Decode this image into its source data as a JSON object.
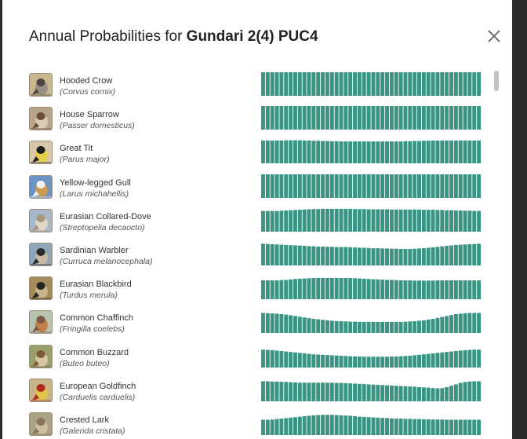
{
  "dialog": {
    "title_prefix": "Annual Probabilities for ",
    "location": "Gundari 2(4) PUC4",
    "close_icon": "close-icon"
  },
  "colors": {
    "bar": "#3a9484"
  },
  "species": [
    {
      "common": "Hooded Crow",
      "scientific": "(Corvus cornix)",
      "icon": "bird-photo-icon",
      "thumb": [
        "#c8b68f",
        "#4a4540",
        "#9a9186"
      ],
      "weekly_probability": [
        1,
        1,
        1,
        1,
        1,
        1,
        1,
        1,
        1,
        1,
        1,
        1,
        1,
        1,
        1,
        1,
        1,
        1,
        1,
        1,
        1,
        1,
        1,
        1,
        1,
        1,
        1,
        1,
        1,
        1,
        1,
        1,
        1,
        1,
        1,
        1,
        1,
        1,
        1,
        1,
        1,
        1,
        1,
        1,
        1,
        1,
        1,
        1
      ]
    },
    {
      "common": "House Sparrow",
      "scientific": "(Passer domesticus)",
      "icon": "bird-photo-icon",
      "thumb": [
        "#b7a48a",
        "#6b4e35",
        "#d7cbb7"
      ],
      "weekly_probability": [
        1,
        1,
        1,
        1,
        1,
        1,
        1,
        1,
        1,
        1,
        1,
        1,
        1,
        1,
        1,
        1,
        1,
        1,
        1,
        1,
        1,
        1,
        1,
        1,
        1,
        1,
        1,
        1,
        1,
        1,
        1,
        1,
        1,
        1,
        1,
        1,
        1,
        1,
        1,
        1,
        1,
        1,
        1,
        1,
        1,
        1,
        1,
        1
      ]
    },
    {
      "common": "Great Tit",
      "scientific": "(Parus major)",
      "icon": "bird-photo-icon",
      "thumb": [
        "#d9c7a9",
        "#1e1e1e",
        "#e3cf4a"
      ],
      "weekly_probability": [
        0.97,
        0.97,
        0.97,
        0.97,
        0.97,
        0.98,
        0.98,
        0.98,
        0.98,
        0.97,
        0.97,
        0.96,
        0.96,
        0.95,
        0.95,
        0.94,
        0.94,
        0.93,
        0.93,
        0.93,
        0.93,
        0.93,
        0.93,
        0.93,
        0.93,
        0.93,
        0.93,
        0.93,
        0.93,
        0.93,
        0.93,
        0.94,
        0.94,
        0.95,
        0.95,
        0.96,
        0.96,
        0.97,
        0.97,
        0.97,
        0.97,
        0.97,
        0.97,
        0.97,
        0.97,
        0.97,
        0.97,
        0.97
      ]
    },
    {
      "common": "Yellow-legged Gull",
      "scientific": "(Larus michahellis)",
      "icon": "bird-photo-icon",
      "thumb": [
        "#6b94c4",
        "#f0f0f0",
        "#c79a4f"
      ],
      "weekly_probability": [
        1,
        1,
        1,
        1,
        1,
        1,
        1,
        1,
        1,
        1,
        1,
        1,
        1,
        1,
        1,
        1,
        1,
        1,
        1,
        1,
        1,
        1,
        1,
        1,
        1,
        1,
        1,
        1,
        1,
        1,
        1,
        1,
        1,
        1,
        1,
        1,
        1,
        1,
        1,
        1,
        1,
        1,
        1,
        1,
        1,
        1,
        1,
        1
      ]
    },
    {
      "common": "Eurasian Collared-Dove",
      "scientific": "(Streptopelia decaocto)",
      "icon": "bird-photo-icon",
      "thumb": [
        "#a7b9c9",
        "#a89580",
        "#e2d6c4"
      ],
      "weekly_probability": [
        0.88,
        0.88,
        0.88,
        0.88,
        0.89,
        0.9,
        0.91,
        0.92,
        0.93,
        0.94,
        0.95,
        0.96,
        0.96,
        0.97,
        0.97,
        0.97,
        0.97,
        0.97,
        0.97,
        0.97,
        0.96,
        0.96,
        0.96,
        0.95,
        0.95,
        0.95,
        0.95,
        0.95,
        0.94,
        0.94,
        0.94,
        0.94,
        0.94,
        0.94,
        0.94,
        0.93,
        0.93,
        0.93,
        0.92,
        0.92,
        0.91,
        0.91,
        0.9,
        0.9,
        0.89,
        0.89,
        0.88,
        0.88
      ]
    },
    {
      "common": "Sardinian Warbler",
      "scientific": "(Curruca melanocephala)",
      "icon": "bird-photo-icon",
      "thumb": [
        "#8fa6b8",
        "#2a2a2a",
        "#c7b9a3"
      ],
      "weekly_probability": [
        0.92,
        0.91,
        0.9,
        0.89,
        0.88,
        0.87,
        0.86,
        0.85,
        0.84,
        0.83,
        0.82,
        0.81,
        0.8,
        0.8,
        0.79,
        0.79,
        0.78,
        0.78,
        0.78,
        0.77,
        0.76,
        0.75,
        0.75,
        0.74,
        0.73,
        0.73,
        0.72,
        0.72,
        0.71,
        0.71,
        0.7,
        0.7,
        0.7,
        0.71,
        0.72,
        0.73,
        0.75,
        0.77,
        0.79,
        0.81,
        0.83,
        0.85,
        0.87,
        0.88,
        0.89,
        0.9,
        0.91,
        0.92
      ]
    },
    {
      "common": "Eurasian Blackbird",
      "scientific": "(Turdus merula)",
      "icon": "bird-photo-icon",
      "thumb": [
        "#a58a5a",
        "#262422",
        "#c6b48a"
      ],
      "weekly_probability": [
        0.8,
        0.8,
        0.8,
        0.8,
        0.81,
        0.82,
        0.84,
        0.86,
        0.87,
        0.88,
        0.89,
        0.9,
        0.9,
        0.9,
        0.9,
        0.9,
        0.9,
        0.9,
        0.9,
        0.9,
        0.89,
        0.88,
        0.87,
        0.86,
        0.85,
        0.84,
        0.83,
        0.82,
        0.82,
        0.81,
        0.8,
        0.8,
        0.8,
        0.79,
        0.79,
        0.79,
        0.79,
        0.79,
        0.8,
        0.8,
        0.8,
        0.8,
        0.8,
        0.8,
        0.8,
        0.8,
        0.8,
        0.8
      ]
    },
    {
      "common": "Common Chaffinch",
      "scientific": "(Fringilla coelebs)",
      "icon": "bird-photo-icon",
      "thumb": [
        "#b9c4b0",
        "#7a5a44",
        "#c0804c"
      ],
      "weekly_probability": [
        0.85,
        0.84,
        0.83,
        0.82,
        0.8,
        0.78,
        0.75,
        0.72,
        0.69,
        0.66,
        0.63,
        0.6,
        0.58,
        0.56,
        0.54,
        0.52,
        0.51,
        0.5,
        0.49,
        0.48,
        0.48,
        0.47,
        0.47,
        0.47,
        0.47,
        0.47,
        0.47,
        0.47,
        0.47,
        0.47,
        0.47,
        0.48,
        0.49,
        0.5,
        0.52,
        0.54,
        0.57,
        0.6,
        0.64,
        0.68,
        0.72,
        0.76,
        0.8,
        0.82,
        0.84,
        0.85,
        0.85,
        0.85
      ]
    },
    {
      "common": "Common Buzzard",
      "scientific": "(Buteo buteo)",
      "icon": "bird-photo-icon",
      "thumb": [
        "#9aa06c",
        "#7b5a3a",
        "#d6c6a2"
      ],
      "weekly_probability": [
        0.76,
        0.75,
        0.74,
        0.72,
        0.7,
        0.68,
        0.66,
        0.64,
        0.62,
        0.6,
        0.58,
        0.56,
        0.55,
        0.54,
        0.53,
        0.52,
        0.51,
        0.5,
        0.49,
        0.48,
        0.47,
        0.47,
        0.46,
        0.46,
        0.46,
        0.46,
        0.46,
        0.46,
        0.47,
        0.47,
        0.48,
        0.49,
        0.5,
        0.52,
        0.54,
        0.56,
        0.58,
        0.6,
        0.62,
        0.64,
        0.66,
        0.68,
        0.7,
        0.72,
        0.74,
        0.75,
        0.76,
        0.76
      ]
    },
    {
      "common": "European Goldfinch",
      "scientific": "(Carduelis carduelis)",
      "icon": "bird-photo-icon",
      "thumb": [
        "#c8b48a",
        "#b02a1e",
        "#e2c44a"
      ],
      "weekly_probability": [
        0.85,
        0.85,
        0.84,
        0.84,
        0.83,
        0.82,
        0.81,
        0.8,
        0.79,
        0.79,
        0.79,
        0.79,
        0.79,
        0.79,
        0.79,
        0.79,
        0.78,
        0.78,
        0.77,
        0.76,
        0.75,
        0.74,
        0.73,
        0.72,
        0.71,
        0.7,
        0.69,
        0.68,
        0.67,
        0.66,
        0.65,
        0.64,
        0.63,
        0.62,
        0.6,
        0.59,
        0.58,
        0.56,
        0.55,
        0.56,
        0.6,
        0.66,
        0.72,
        0.78,
        0.82,
        0.84,
        0.85,
        0.85
      ]
    },
    {
      "common": "Crested Lark",
      "scientific": "(Galerida cristata)",
      "icon": "bird-photo-icon",
      "thumb": [
        "#a9a382",
        "#8a7558",
        "#cbbfa0"
      ],
      "weekly_probability": [
        0.65,
        0.65,
        0.66,
        0.68,
        0.7,
        0.72,
        0.74,
        0.76,
        0.78,
        0.8,
        0.82,
        0.84,
        0.85,
        0.86,
        0.86,
        0.86,
        0.85,
        0.84,
        0.83,
        0.82,
        0.8,
        0.78,
        0.77,
        0.76,
        0.75,
        0.74,
        0.73,
        0.72,
        0.71,
        0.7,
        0.7,
        0.69,
        0.69,
        0.68,
        0.68,
        0.67,
        0.67,
        0.66,
        0.66,
        0.66,
        0.65,
        0.65,
        0.65,
        0.65,
        0.65,
        0.65,
        0.65,
        0.65
      ]
    }
  ]
}
